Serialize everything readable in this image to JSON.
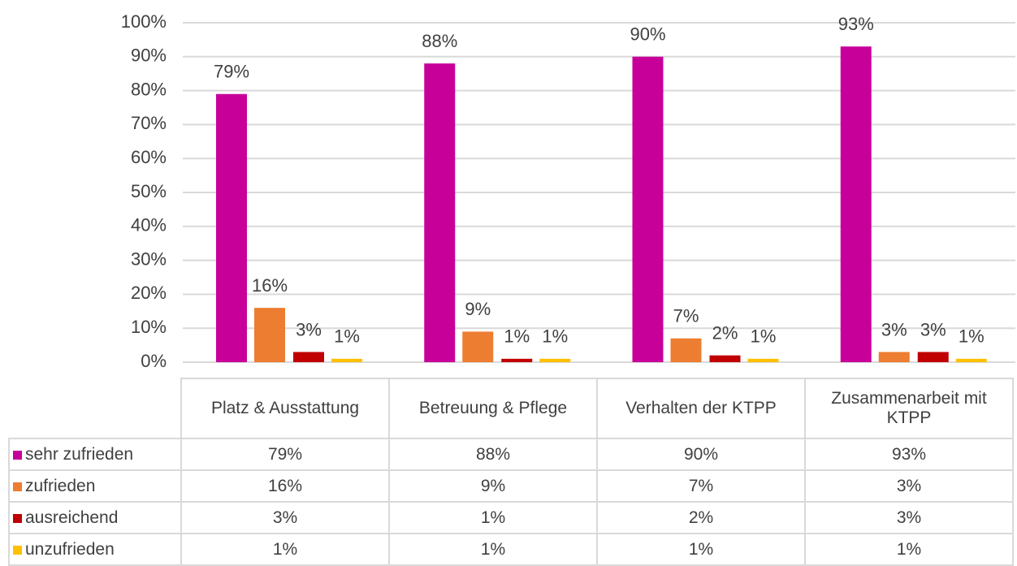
{
  "chart_data": {
    "type": "bar",
    "categories": [
      "Platz & Ausstattung",
      "Betreuung & Pflege",
      "Verhalten der KTPP",
      "Zusammenarbeit mit KTPP"
    ],
    "series": [
      {
        "name": "sehr zufrieden",
        "color": "#c8009a",
        "values": [
          79,
          88,
          90,
          93
        ],
        "value_labels": [
          "79%",
          "88%",
          "90%",
          "93%"
        ]
      },
      {
        "name": "zufrieden",
        "color": "#ed7d31",
        "values": [
          16,
          9,
          7,
          3
        ],
        "value_labels": [
          "16%",
          "9%",
          "7%",
          "3%"
        ]
      },
      {
        "name": "ausreichend",
        "color": "#c00000",
        "values": [
          3,
          1,
          2,
          3
        ],
        "value_labels": [
          "3%",
          "1%",
          "2%",
          "3%"
        ]
      },
      {
        "name": "unzufrieden",
        "color": "#ffc000",
        "values": [
          1,
          1,
          1,
          1
        ],
        "value_labels": [
          "1%",
          "1%",
          "1%",
          "1%"
        ]
      }
    ],
    "ylim": [
      0,
      100
    ],
    "yticks": [
      {
        "value": 0,
        "label": "0%"
      },
      {
        "value": 10,
        "label": "10%"
      },
      {
        "value": 20,
        "label": "20%"
      },
      {
        "value": 30,
        "label": "30%"
      },
      {
        "value": 40,
        "label": "40%"
      },
      {
        "value": 50,
        "label": "50%"
      },
      {
        "value": 60,
        "label": "60%"
      },
      {
        "value": 70,
        "label": "70%"
      },
      {
        "value": 80,
        "label": "80%"
      },
      {
        "value": 90,
        "label": "90%"
      },
      {
        "value": 100,
        "label": "100%"
      }
    ],
    "grid": true
  }
}
